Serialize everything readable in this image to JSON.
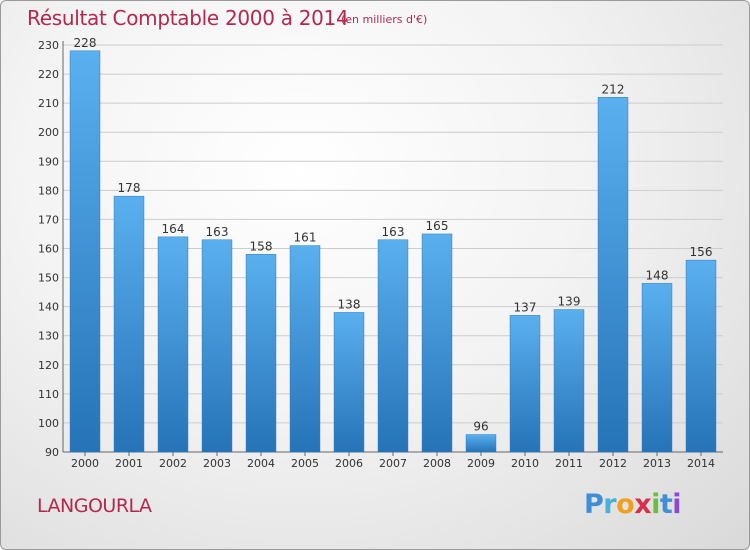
{
  "title": "Résultat Comptable 2000 à 2014",
  "subtitle": "(en milliers d'€)",
  "commune": "LANGOURLA",
  "logo": {
    "letters": [
      "P",
      "r",
      "o",
      "x",
      "i",
      "t",
      "i"
    ],
    "colors": [
      "#3d8fd8",
      "#4ab0d8",
      "#f0a020",
      "#d8304a",
      "#6cbf3a",
      "#3d8fd8",
      "#8c4ad0"
    ]
  },
  "colors": {
    "title": "#b5284e",
    "bar_light": "#5ab0ee",
    "bar_dark": "#2673b8",
    "grid": "#cccccc"
  },
  "chart_data": {
    "type": "bar",
    "categories": [
      "2000",
      "2001",
      "2002",
      "2003",
      "2004",
      "2005",
      "2006",
      "2007",
      "2008",
      "2009",
      "2010",
      "2011",
      "2012",
      "2013",
      "2014"
    ],
    "values": [
      228,
      178,
      164,
      163,
      158,
      161,
      138,
      163,
      165,
      96,
      137,
      139,
      212,
      148,
      156
    ],
    "title": "Résultat Comptable 2000 à 2014",
    "ylim": [
      90,
      230
    ],
    "yticks": [
      90,
      100,
      110,
      120,
      130,
      140,
      150,
      160,
      170,
      180,
      190,
      200,
      210,
      220,
      230
    ],
    "grid": true,
    "legend": "none"
  }
}
